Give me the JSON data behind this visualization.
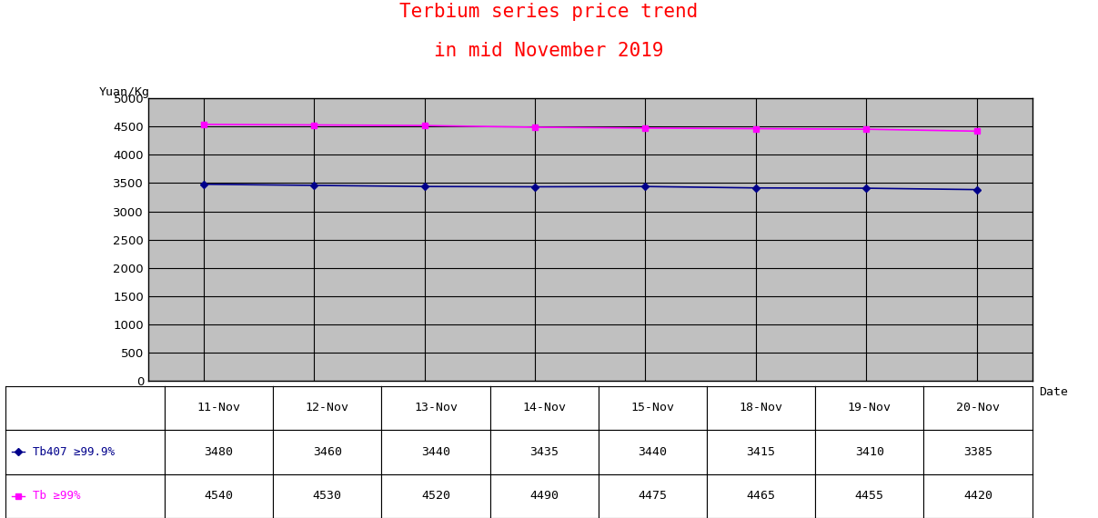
{
  "title_line1": "Terbium series price trend",
  "title_line2": "in mid November 2019",
  "title_color": "#FF0000",
  "ylabel": "Yuan/Kg",
  "xlabel": "Date",
  "dates": [
    "11-Nov",
    "12-Nov",
    "13-Nov",
    "14-Nov",
    "15-Nov",
    "18-Nov",
    "19-Nov",
    "20-Nov"
  ],
  "series": [
    {
      "label": "Tb407 ≥99.9%",
      "values": [
        3480,
        3460,
        3440,
        3435,
        3440,
        3415,
        3410,
        3385
      ],
      "color": "#00008B",
      "marker": "D",
      "markersize": 4
    },
    {
      "label": "Tb ≥99%",
      "values": [
        4540,
        4530,
        4520,
        4490,
        4475,
        4465,
        4455,
        4420
      ],
      "color": "#FF00FF",
      "marker": "s",
      "markersize": 4
    }
  ],
  "ylim": [
    0,
    5000
  ],
  "yticks": [
    0,
    500,
    1000,
    1500,
    2000,
    2500,
    3000,
    3500,
    4000,
    4500,
    5000
  ],
  "plot_bg_color": "#C0C0C0",
  "fig_bg_color": "#FFFFFF",
  "grid_color": "#000000",
  "table_row1_values": [
    "3480",
    "3460",
    "3440",
    "3435",
    "3440",
    "3415",
    "3410",
    "3385"
  ],
  "table_row2_values": [
    "4540",
    "4530",
    "4520",
    "4490",
    "4475",
    "4465",
    "4455",
    "4420"
  ],
  "table_label_color1": "#00008B",
  "table_label_color2": "#FF00FF",
  "table_value_color": "#000000"
}
